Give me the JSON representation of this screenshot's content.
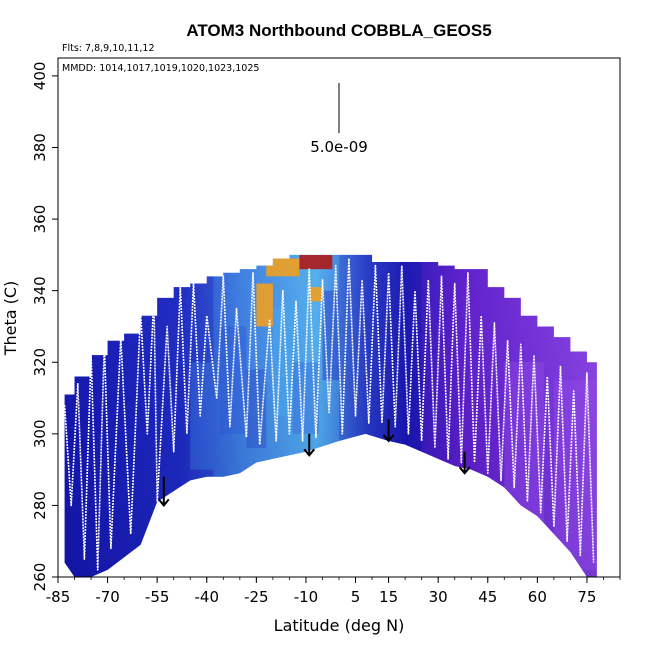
{
  "chart_data": {
    "type": "heatmap",
    "title": "ATOM3 Northbound COBBLA_GEOS5",
    "subtitle_flights": "Flts: 7,8,9,10,11,12",
    "subtitle_dates": "MMDD: 1014,1017,1019,1020,1023,1025",
    "xlabel": "Latitude (deg N)",
    "ylabel": "Theta (C)",
    "xlim": [
      -85,
      85
    ],
    "ylim": [
      260,
      405
    ],
    "xticks": [
      "-85",
      "-70",
      "-55",
      "-40",
      "-25",
      "-10",
      "5",
      "15",
      "30",
      "45",
      "60",
      "75"
    ],
    "yticks": [
      "260",
      "280",
      "300",
      "320",
      "340",
      "360",
      "380",
      "400"
    ],
    "scale_label": "5.0e-09",
    "scale_bar_theta": [
      384,
      398
    ],
    "scale_bar_lat": 0,
    "colors": {
      "navy": "#1a1ab8",
      "blue": "#2a4fd8",
      "sky": "#4aa8ee",
      "violet": "#7a2ad8",
      "lavender": "#9a50ee",
      "orange": "#f0a020",
      "red": "#b01818"
    },
    "top_envelope": [
      [
        -83,
        311
      ],
      [
        -80,
        316
      ],
      [
        -75,
        322
      ],
      [
        -70,
        326
      ],
      [
        -65,
        328
      ],
      [
        -60,
        333
      ],
      [
        -55,
        338
      ],
      [
        -50,
        341
      ],
      [
        -45,
        342
      ],
      [
        -40,
        344
      ],
      [
        -35,
        345
      ],
      [
        -30,
        346
      ],
      [
        -25,
        347
      ],
      [
        -20,
        349
      ],
      [
        -15,
        350
      ],
      [
        -10,
        350
      ],
      [
        -5,
        350
      ],
      [
        0,
        350
      ],
      [
        5,
        350
      ],
      [
        10,
        348
      ],
      [
        20,
        348
      ],
      [
        30,
        347
      ],
      [
        35,
        346
      ],
      [
        40,
        346
      ],
      [
        45,
        341
      ],
      [
        50,
        338
      ],
      [
        55,
        333
      ],
      [
        60,
        330
      ],
      [
        65,
        327
      ],
      [
        70,
        323
      ],
      [
        75,
        320
      ],
      [
        78,
        317
      ]
    ],
    "bottom_envelope": [
      [
        -83,
        264
      ],
      [
        -80,
        260
      ],
      [
        -75,
        260
      ],
      [
        -70,
        262
      ],
      [
        -60,
        269
      ],
      [
        -55,
        281
      ],
      [
        -50,
        284
      ],
      [
        -45,
        287
      ],
      [
        -40,
        288
      ],
      [
        -35,
        288
      ],
      [
        -30,
        289
      ],
      [
        -25,
        292
      ],
      [
        -20,
        293
      ],
      [
        -10,
        295
      ],
      [
        0,
        298
      ],
      [
        8,
        300
      ],
      [
        15,
        298
      ],
      [
        20,
        297
      ],
      [
        25,
        295
      ],
      [
        30,
        293
      ],
      [
        35,
        291
      ],
      [
        40,
        290
      ],
      [
        45,
        288
      ],
      [
        50,
        285
      ],
      [
        55,
        280
      ],
      [
        60,
        277
      ],
      [
        65,
        272
      ],
      [
        70,
        267
      ],
      [
        75,
        260
      ],
      [
        78,
        260
      ]
    ],
    "profile_flights": [
      [
        -83,
        308
      ],
      [
        -81,
        280
      ],
      [
        -79,
        314
      ],
      [
        -77,
        265
      ],
      [
        -75,
        322
      ],
      [
        -73,
        262
      ],
      [
        -71,
        325
      ],
      [
        -69,
        268
      ],
      [
        -66,
        327
      ],
      [
        -63,
        272
      ],
      [
        -60,
        334
      ],
      [
        -58,
        300
      ],
      [
        -56,
        338
      ],
      [
        -55,
        281
      ],
      [
        -52,
        330
      ],
      [
        -50,
        295
      ],
      [
        -48,
        341
      ],
      [
        -46,
        300
      ],
      [
        -44,
        342
      ],
      [
        -42,
        305
      ],
      [
        -40,
        333
      ],
      [
        -37,
        310
      ],
      [
        -35,
        344
      ],
      [
        -33,
        302
      ],
      [
        -31,
        335
      ],
      [
        -28,
        299
      ],
      [
        -26,
        345
      ],
      [
        -24,
        297
      ],
      [
        -21,
        332
      ],
      [
        -19,
        298
      ],
      [
        -17,
        340
      ],
      [
        -15,
        300
      ],
      [
        -13,
        337
      ],
      [
        -11,
        298
      ],
      [
        -9,
        346
      ],
      [
        -7,
        299
      ],
      [
        -5,
        343
      ],
      [
        -3,
        306
      ],
      [
        -1,
        347
      ],
      [
        1,
        300
      ],
      [
        3,
        349
      ],
      [
        5,
        305
      ],
      [
        7,
        343
      ],
      [
        9,
        303
      ],
      [
        11,
        347
      ],
      [
        13,
        303
      ],
      [
        15,
        345
      ],
      [
        17,
        302
      ],
      [
        19,
        347
      ],
      [
        21,
        300
      ],
      [
        23,
        340
      ],
      [
        25,
        298
      ],
      [
        27,
        343
      ],
      [
        29,
        296
      ],
      [
        31,
        344
      ],
      [
        33,
        293
      ],
      [
        35,
        342
      ],
      [
        37,
        292
      ],
      [
        39,
        345
      ],
      [
        41,
        292
      ],
      [
        43,
        333
      ],
      [
        45,
        289
      ],
      [
        47,
        331
      ],
      [
        49,
        287
      ],
      [
        51,
        326
      ],
      [
        53,
        285
      ],
      [
        55,
        325
      ],
      [
        57,
        281
      ],
      [
        59,
        322
      ],
      [
        61,
        278
      ],
      [
        63,
        316
      ],
      [
        65,
        274
      ],
      [
        67,
        319
      ],
      [
        69,
        270
      ],
      [
        71,
        312
      ],
      [
        73,
        266
      ],
      [
        75,
        317
      ],
      [
        77,
        264
      ]
    ],
    "arrows": [
      {
        "lat": -53,
        "theta_top": 288,
        "theta_tip": 280
      },
      {
        "lat": -9,
        "theta_top": 300,
        "theta_tip": 294
      },
      {
        "lat": 15,
        "theta_top": 304,
        "theta_tip": 298
      },
      {
        "lat": 38,
        "theta_top": 295,
        "theta_tip": 289
      }
    ],
    "hotspots": [
      {
        "lat_min": -12,
        "lat_max": -2,
        "theta_min": 346,
        "theta_max": 350,
        "color": "red"
      },
      {
        "lat_min": -22,
        "lat_max": -12,
        "theta_min": 344,
        "theta_max": 349,
        "color": "orange"
      },
      {
        "lat_min": -25,
        "lat_max": -20,
        "theta_min": 330,
        "theta_max": 342,
        "color": "orange"
      },
      {
        "lat_min": -9,
        "lat_max": -5,
        "theta_min": 337,
        "theta_max": 341,
        "color": "orange"
      }
    ],
    "regions": [
      {
        "lat_min": -85,
        "lat_max": -38,
        "color": "navy"
      },
      {
        "lat_min": -38,
        "lat_max": 0,
        "color": "sky"
      },
      {
        "lat_min": 0,
        "lat_max": 25,
        "color": "navy"
      },
      {
        "lat_min": 25,
        "lat_max": 85,
        "color": "violet"
      }
    ]
  }
}
